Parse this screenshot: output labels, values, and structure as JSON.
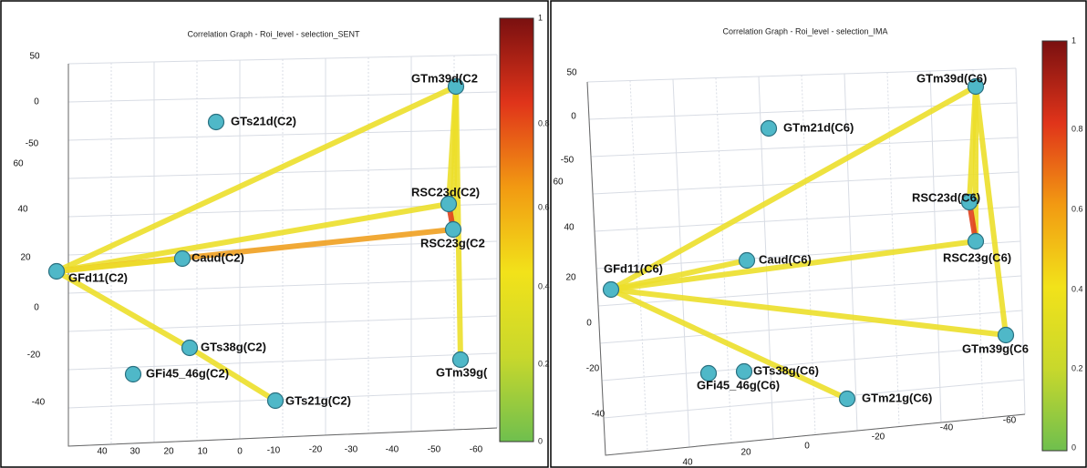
{
  "panels": [
    {
      "title": "Correlation Graph - Roi_level - selection_SENT",
      "nodes": [
        {
          "label": "GTm39d(C2"
        },
        {
          "label": "GTs21d(C2)"
        },
        {
          "label": "RSC23d(C2)"
        },
        {
          "label": "RSC23g(C2"
        },
        {
          "label": "Caud(C2)"
        },
        {
          "label": "GFd11(C2)"
        },
        {
          "label": "GTs38g(C2)"
        },
        {
          "label": "GTm39g("
        },
        {
          "label": "GFi45_46g(C2)"
        },
        {
          "label": "GTs21g(C2)"
        }
      ],
      "z_ticks": [
        "50",
        "0",
        "-50"
      ],
      "y_ticks": [
        "60",
        "40",
        "20",
        "0",
        "-20",
        "-40"
      ],
      "x_ticks": [
        "40",
        "30",
        "20",
        "10",
        "0",
        "-10",
        "-20",
        "-30",
        "-40",
        "-50",
        "-60"
      ],
      "colorbar_ticks": [
        "1",
        "0.8",
        "0.6",
        "0.4",
        "0.2",
        "0"
      ]
    },
    {
      "title": "Correlation Graph - Roi_level - selection_IMA",
      "nodes": [
        {
          "label": "GTm39d(C6)"
        },
        {
          "label": "GTm21d(C6)"
        },
        {
          "label": "RSC23d(C6)"
        },
        {
          "label": "RSC23g(C6)"
        },
        {
          "label": "Caud(C6)"
        },
        {
          "label": "GFd11(C6)"
        },
        {
          "label": "GTm39g(C6"
        },
        {
          "label": "GTs38g(C6)"
        },
        {
          "label": "GFi45_46g(C6)"
        },
        {
          "label": "GTm21g(C6)"
        }
      ],
      "z_ticks": [
        "50",
        "0",
        "-50"
      ],
      "y_ticks": [
        "60",
        "40",
        "20",
        "0",
        "-20",
        "-40"
      ],
      "x_ticks": [
        "40",
        "20",
        "0",
        "-20",
        "-40",
        "-60"
      ],
      "colorbar_ticks": [
        "1",
        "0.8",
        "0.6",
        "0.4",
        "0.2",
        "0"
      ]
    }
  ]
}
